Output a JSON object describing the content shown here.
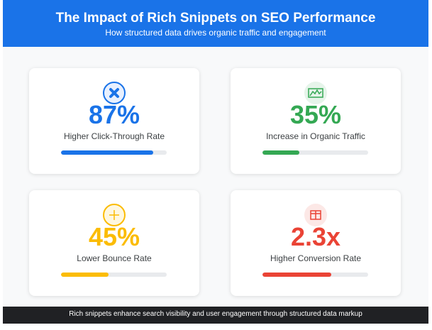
{
  "header": {
    "title": "The Impact of Rich Snippets on SEO Performance",
    "subtitle": "How structured data drives organic traffic and engagement"
  },
  "cards": [
    {
      "value": "87%",
      "label": "Higher Click-Through Rate",
      "icon": "cursor-click-icon",
      "color": "#1a73e8",
      "progress": 87
    },
    {
      "value": "35%",
      "label": "Increase in Organic Traffic",
      "icon": "traffic-chart-icon",
      "color": "#34a853",
      "progress": 35
    },
    {
      "value": "45%",
      "label": "Lower Bounce Rate",
      "icon": "plus-circle-icon",
      "color": "#fbbc04",
      "progress": 45
    },
    {
      "value": "2.3x",
      "label": "Higher Conversion Rate",
      "icon": "conversion-box-icon",
      "color": "#ea4335",
      "progress": 65
    }
  ],
  "footer": {
    "text": "Rich snippets enhance search visibility and user engagement through structured data markup"
  }
}
